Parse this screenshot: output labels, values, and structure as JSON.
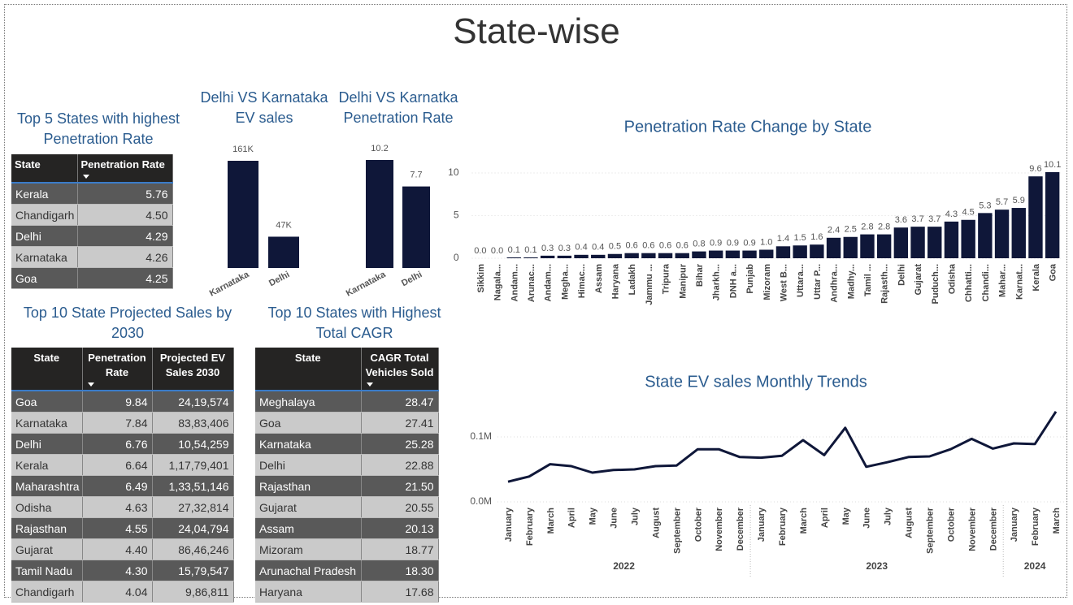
{
  "title": "State-wise",
  "tables": [
    {
      "title": "Top 5 States with highest Penetration Rate",
      "columns": [
        "State",
        "Penetration Rate"
      ],
      "sort_by": "Penetration Rate",
      "rows": [
        [
          "Kerala",
          "5.76"
        ],
        [
          "Chandigarh",
          "4.50"
        ],
        [
          "Delhi",
          "4.29"
        ],
        [
          "Karnataka",
          "4.26"
        ],
        [
          "Goa",
          "4.25"
        ]
      ]
    },
    {
      "title": "Top 10 State Projected Sales by 2030",
      "columns": [
        "State",
        "Penetration Rate",
        "Projected EV Sales 2030"
      ],
      "sort_by": "Penetration Rate",
      "rows": [
        [
          "Goa",
          "9.84",
          "24,19,574"
        ],
        [
          "Karnataka",
          "7.84",
          "83,83,406"
        ],
        [
          "Delhi",
          "6.76",
          "10,54,259"
        ],
        [
          "Kerala",
          "6.64",
          "1,17,79,401"
        ],
        [
          "Maharashtra",
          "6.49",
          "1,33,51,146"
        ],
        [
          "Odisha",
          "4.63",
          "27,32,814"
        ],
        [
          "Rajasthan",
          "4.55",
          "24,04,794"
        ],
        [
          "Gujarat",
          "4.40",
          "86,46,246"
        ],
        [
          "Tamil Nadu",
          "4.30",
          "15,79,547"
        ],
        [
          "Chandigarh",
          "4.04",
          "9,86,811"
        ]
      ]
    },
    {
      "title": "Top 10 States with Highest Total CAGR",
      "columns": [
        "State",
        "CAGR Total Vehicles Sold"
      ],
      "sort_by": "CAGR Total Vehicles Sold",
      "rows": [
        [
          "Meghalaya",
          "28.47"
        ],
        [
          "Goa",
          "27.41"
        ],
        [
          "Karnataka",
          "25.28"
        ],
        [
          "Delhi",
          "22.88"
        ],
        [
          "Rajasthan",
          "21.50"
        ],
        [
          "Gujarat",
          "20.55"
        ],
        [
          "Assam",
          "20.13"
        ],
        [
          "Mizoram",
          "18.77"
        ],
        [
          "Arunachal Pradesh",
          "18.30"
        ],
        [
          "Haryana",
          "17.68"
        ]
      ]
    }
  ],
  "chart_data": [
    {
      "type": "bar",
      "title": "Delhi VS Karnataka EV sales",
      "categories": [
        "Karnataka",
        "Delhi"
      ],
      "values": [
        161000,
        47000
      ],
      "value_labels": [
        "161K",
        "47K"
      ],
      "color": "#0f1739"
    },
    {
      "type": "bar",
      "title": "Delhi VS Karnatka Penetration Rate",
      "categories": [
        "Karnataka",
        "Delhi"
      ],
      "values": [
        10.2,
        7.7
      ],
      "color": "#0f1739"
    },
    {
      "type": "bar",
      "title": "Penetration Rate Change by State",
      "categories": [
        "Sikkim",
        "Nagala...",
        "Andam...",
        "Arunac...",
        "Andam...",
        "Megha...",
        "Himac...",
        "Assam",
        "Haryana",
        "Ladakh",
        "Jammu ...",
        "Tripura",
        "Manipur",
        "Bihar",
        "Jharkh...",
        "DNH a...",
        "Punjab",
        "Mizoram",
        "West B...",
        "Uttara...",
        "Uttar P...",
        "Andhra...",
        "Madhy...",
        "Tamil ...",
        "Rajasth...",
        "Delhi",
        "Gujarat",
        "Puduch...",
        "Odisha",
        "Chhatti...",
        "Chandi...",
        "Mahar...",
        "Karnat...",
        "Kerala",
        "Goa"
      ],
      "values": [
        0.0,
        0.0,
        0.1,
        0.1,
        0.3,
        0.3,
        0.4,
        0.4,
        0.5,
        0.6,
        0.6,
        0.6,
        0.6,
        0.8,
        0.9,
        0.9,
        0.9,
        1.0,
        1.4,
        1.5,
        1.6,
        2.4,
        2.5,
        2.8,
        2.8,
        3.6,
        3.7,
        3.7,
        4.3,
        4.5,
        5.3,
        5.7,
        5.9,
        9.6,
        10.1
      ],
      "value_labels": [
        "0.0",
        "0.0",
        "0.1",
        "0.1",
        "0.3",
        "0.3",
        "0.4",
        "0.4",
        "0.5",
        "0.6",
        "0.6",
        "0.6",
        "0.6",
        "0.8",
        "0.9",
        "0.9",
        "0.9",
        "1.0",
        "1.4",
        "1.5",
        "1.6",
        "2.4",
        "2.5",
        "2.8",
        "2.8",
        "3.6",
        "3.7",
        "3.7",
        "4.3",
        "4.5",
        "5.3",
        "5.7",
        "5.9",
        "9.6",
        "10.1"
      ],
      "color": "#0f1739",
      "ylim": [
        0,
        10.5
      ],
      "yticks": [
        0,
        5,
        10
      ],
      "grid": true
    },
    {
      "type": "line",
      "title": "State EV sales Monthly Trends",
      "groups": [
        {
          "label": "2022",
          "categories": [
            "January",
            "February",
            "March",
            "April",
            "May",
            "June",
            "July",
            "August",
            "September",
            "October",
            "November",
            "December"
          ]
        },
        {
          "label": "2023",
          "categories": [
            "January",
            "February",
            "March",
            "April",
            "May",
            "June",
            "July",
            "August",
            "September",
            "October",
            "November",
            "December"
          ]
        },
        {
          "label": "2024",
          "categories": [
            "January",
            "February",
            "March"
          ]
        }
      ],
      "values": [
        31000,
        39000,
        58000,
        55000,
        45000,
        49000,
        50000,
        55000,
        56000,
        81000,
        81000,
        69000,
        68000,
        71000,
        95000,
        72000,
        114000,
        54000,
        61000,
        69000,
        70000,
        81000,
        97000,
        82000,
        90000,
        89000,
        139000
      ],
      "color": "#0f1739",
      "ylim": [
        0,
        150000
      ],
      "yticks": [
        {
          "value": 0,
          "label": "0.0M"
        },
        {
          "value": 100000,
          "label": "0.1M"
        }
      ],
      "grid": true
    }
  ]
}
